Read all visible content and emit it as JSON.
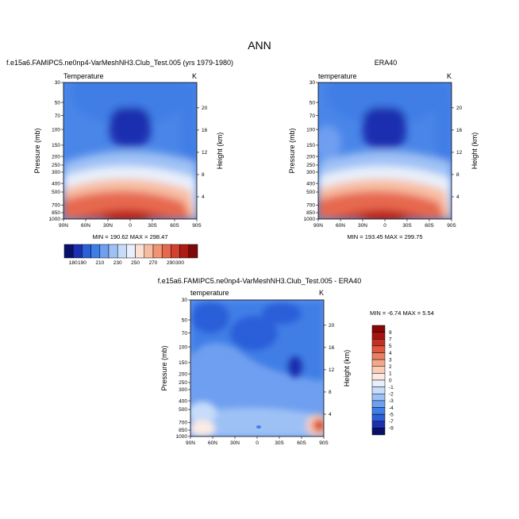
{
  "figure": {
    "main_title": "ANN",
    "colors": {
      "abs_scale": [
        "#08106a",
        "#1c2fb0",
        "#2b5ed9",
        "#3f7ee6",
        "#6f9ff0",
        "#9ec1f5",
        "#c7dcf9",
        "#e9f0fb",
        "#fbe0d2",
        "#f7bda3",
        "#f29374",
        "#e6694f",
        "#d2402e",
        "#ad1b12",
        "#7f0808"
      ],
      "diff_scale": [
        "#08106a",
        "#1c2fb0",
        "#2b5ed9",
        "#3f7ee6",
        "#6f9ff0",
        "#9ec1f5",
        "#c7dcf9",
        "#e9f0fb",
        "#fdebe3",
        "#f9cdb7",
        "#f4a88a",
        "#ec7f62",
        "#de5840",
        "#c23124",
        "#a8130d",
        "#880606"
      ]
    }
  },
  "chart_data": [
    {
      "type": "heatmap",
      "title": "f.e15a6.FAMIPC5.ne0np4-VarMeshNH3.Club_Test.005 (yrs 1979-1980)",
      "left_label": "Temperature",
      "units": "K",
      "ylabel": "Pressure (mb)",
      "ylabel_right": "Height (km)",
      "x_ticks": [
        "90N",
        "60N",
        "30N",
        "0",
        "30S",
        "60S",
        "90S"
      ],
      "y_ticks": [
        "30",
        "50",
        "70",
        "100",
        "150",
        "200",
        "250",
        "300",
        "400",
        "500",
        "700",
        "850",
        "1000"
      ],
      "y_ticks_right": [
        "20",
        "16",
        "12",
        "8",
        "4"
      ],
      "min_max_text": "MIN = 190.62  MAX = 298.47"
    },
    {
      "type": "heatmap",
      "title": "ERA40",
      "left_label": "temperature",
      "units": "K",
      "ylabel": "Pressure (mb)",
      "ylabel_right": "Height (km)",
      "x_ticks": [
        "90N",
        "60N",
        "30N",
        "0",
        "30S",
        "60S",
        "90S"
      ],
      "y_ticks": [
        "30",
        "50",
        "70",
        "100",
        "150",
        "200",
        "250",
        "300",
        "400",
        "500",
        "700",
        "850",
        "1000"
      ],
      "y_ticks_right": [
        "20",
        "16",
        "12",
        "8",
        "4"
      ],
      "min_max_text": "MIN = 193.45  MAX = 299.75"
    },
    {
      "type": "heatmap",
      "title": "f.e15a6.FAMIPC5.ne0np4-VarMeshNH3.Club_Test.005 - ERA40",
      "left_label": "temperature",
      "units": "K",
      "ylabel": "Pressure (mb)",
      "ylabel_right": "Height (km)",
      "x_ticks": [
        "90N",
        "60N",
        "30N",
        "0",
        "30S",
        "60S",
        "90S"
      ],
      "y_ticks": [
        "30",
        "50",
        "70",
        "100",
        "150",
        "200",
        "250",
        "300",
        "400",
        "500",
        "700",
        "850",
        "1000"
      ],
      "y_ticks_right": [
        "20",
        "16",
        "12",
        "8",
        "4"
      ],
      "min_max_text": "MIN = -6.74  MAX =  5.54"
    }
  ],
  "colorbars": {
    "absolute": {
      "labels": [
        "180",
        "190",
        "200",
        "210",
        "220",
        "230",
        "240",
        "250",
        "260",
        "270",
        "280",
        "290",
        "300"
      ],
      "shown_labels": [
        "180",
        "190",
        "210",
        "230",
        "250",
        "270",
        "290",
        "300"
      ]
    },
    "difference": {
      "labels": [
        "9",
        "7",
        "5",
        "4",
        "3",
        "2",
        "1",
        "0",
        "-1",
        "-2",
        "-3",
        "-4",
        "-5",
        "-7",
        "-9"
      ]
    }
  }
}
